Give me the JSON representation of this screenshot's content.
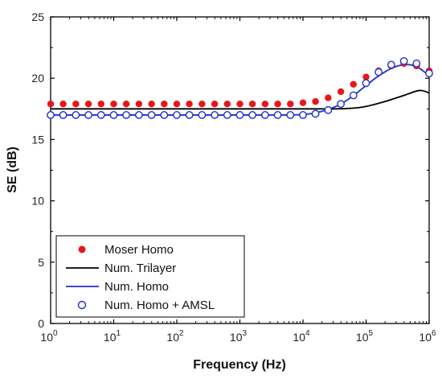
{
  "chart_data": {
    "type": "line",
    "title": "",
    "xlabel": "Frequency (Hz)",
    "ylabel": "SE (dB)",
    "x_scale": "log",
    "xlim": [
      1,
      1000000
    ],
    "ylim": [
      0,
      25
    ],
    "y_ticks": [
      0,
      5,
      10,
      15,
      20,
      25
    ],
    "x_ticks": [
      {
        "value": 1,
        "base": "10",
        "exp": "0"
      },
      {
        "value": 10,
        "base": "10",
        "exp": "1"
      },
      {
        "value": 100,
        "base": "10",
        "exp": "2"
      },
      {
        "value": 1000,
        "base": "10",
        "exp": "3"
      },
      {
        "value": 10000,
        "base": "10",
        "exp": "4"
      },
      {
        "value": 100000,
        "base": "10",
        "exp": "5"
      },
      {
        "value": 1000000,
        "base": "10",
        "exp": "6"
      }
    ],
    "grid": false,
    "legend_position": "bottom-left",
    "series": [
      {
        "name": "Moser Homo",
        "style": "marker-filled",
        "color": "#e8161b",
        "x": [
          1,
          1.58,
          2.51,
          3.98,
          6.31,
          10,
          15.8,
          25.1,
          39.8,
          63.1,
          100,
          158,
          251,
          398,
          631,
          1000,
          1580,
          2510,
          3980,
          6310,
          10000,
          15800,
          25100,
          39800,
          63100,
          100000,
          158000,
          251000,
          398000,
          631000,
          1000000
        ],
        "y": [
          17.9,
          17.9,
          17.9,
          17.9,
          17.9,
          17.9,
          17.9,
          17.9,
          17.9,
          17.9,
          17.9,
          17.9,
          17.9,
          17.9,
          17.9,
          17.9,
          17.9,
          17.9,
          17.9,
          17.9,
          18.0,
          18.1,
          18.4,
          18.9,
          19.5,
          20.1,
          20.6,
          21.0,
          21.2,
          21.0,
          20.6
        ]
      },
      {
        "name": "Num. Trilayer",
        "style": "line",
        "color": "#000000",
        "x": [
          1,
          10,
          100,
          1000,
          10000,
          30000,
          60000,
          100000,
          200000,
          400000,
          700000,
          1000000
        ],
        "y": [
          17.5,
          17.5,
          17.5,
          17.5,
          17.5,
          17.5,
          17.55,
          17.7,
          18.1,
          18.6,
          19.0,
          18.8
        ]
      },
      {
        "name": "Num. Homo",
        "style": "line",
        "color": "#1f2fd0",
        "x": [
          1,
          10,
          100,
          1000,
          6000,
          10000,
          15000,
          25000,
          40000,
          60000,
          100000,
          150000,
          250000,
          400000,
          600000,
          800000,
          1000000
        ],
        "y": [
          17.0,
          17.0,
          17.0,
          17.0,
          17.0,
          17.05,
          17.15,
          17.45,
          17.9,
          18.5,
          19.4,
          20.1,
          20.8,
          21.1,
          21.0,
          20.6,
          20.2
        ]
      },
      {
        "name": "Num. Homo + AMSL",
        "style": "marker-open",
        "color": "#1f2fd0",
        "x": [
          1,
          1.58,
          2.51,
          3.98,
          6.31,
          10,
          15.8,
          25.1,
          39.8,
          63.1,
          100,
          158,
          251,
          398,
          631,
          1000,
          1580,
          2510,
          3980,
          6310,
          10000,
          15800,
          25100,
          39800,
          63100,
          100000,
          158000,
          251000,
          398000,
          631000,
          1000000
        ],
        "y": [
          17.0,
          17.0,
          17.0,
          17.0,
          17.0,
          17.0,
          17.0,
          17.0,
          17.0,
          17.0,
          17.0,
          17.0,
          17.0,
          17.0,
          17.0,
          17.0,
          17.0,
          17.0,
          17.0,
          17.0,
          17.0,
          17.1,
          17.4,
          17.9,
          18.6,
          19.6,
          20.5,
          21.1,
          21.4,
          21.2,
          20.4
        ]
      }
    ]
  }
}
